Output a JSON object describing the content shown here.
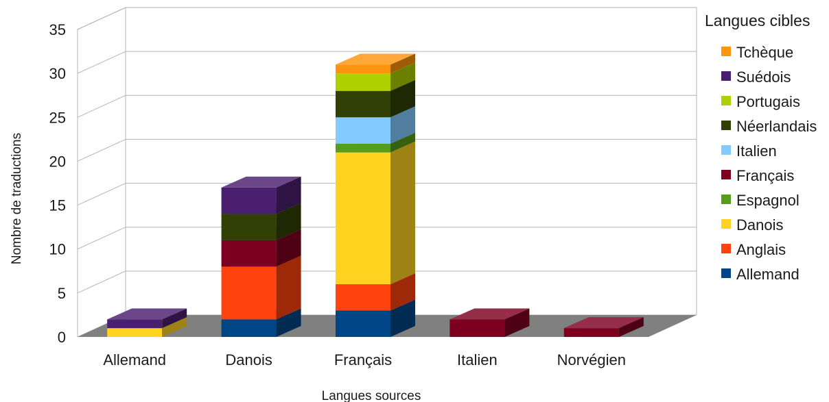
{
  "chart_data": {
    "type": "bar",
    "stacked": true,
    "three_d": true,
    "categories": [
      "Allemand",
      "Danois",
      "Français",
      "Italien",
      "Norvégien"
    ],
    "series": [
      {
        "name": "Allemand",
        "color": "#004586",
        "values": [
          0,
          2,
          3,
          0,
          0
        ]
      },
      {
        "name": "Anglais",
        "color": "#ff420e",
        "values": [
          0,
          6,
          3,
          0,
          0
        ]
      },
      {
        "name": "Danois",
        "color": "#ffd320",
        "values": [
          1,
          0,
          15,
          0,
          0
        ]
      },
      {
        "name": "Espagnol",
        "color": "#579d1c",
        "values": [
          0,
          0,
          1,
          0,
          0
        ]
      },
      {
        "name": "Français",
        "color": "#7e0021",
        "values": [
          0,
          3,
          0,
          2,
          1
        ]
      },
      {
        "name": "Italien",
        "color": "#83caff",
        "values": [
          0,
          0,
          3,
          0,
          0
        ]
      },
      {
        "name": "Néerlandais",
        "color": "#314004",
        "values": [
          0,
          3,
          3,
          0,
          0
        ]
      },
      {
        "name": "Portugais",
        "color": "#aecf00",
        "values": [
          0,
          0,
          2,
          0,
          0
        ]
      },
      {
        "name": "Suédois",
        "color": "#4b1f6f",
        "values": [
          1,
          3,
          0,
          0,
          0
        ]
      },
      {
        "name": "Tchèque",
        "color": "#ff950e",
        "values": [
          0,
          0,
          1,
          0,
          0
        ]
      }
    ],
    "y_ticks": [
      "0",
      "5",
      "10",
      "15",
      "20",
      "25",
      "30",
      "35"
    ],
    "ylim": [
      0,
      35
    ],
    "xlabel": "Langues sources",
    "ylabel": "Nombre de traductions",
    "legend_title": "Langues cibles",
    "legend_position": "right",
    "grid": true
  }
}
